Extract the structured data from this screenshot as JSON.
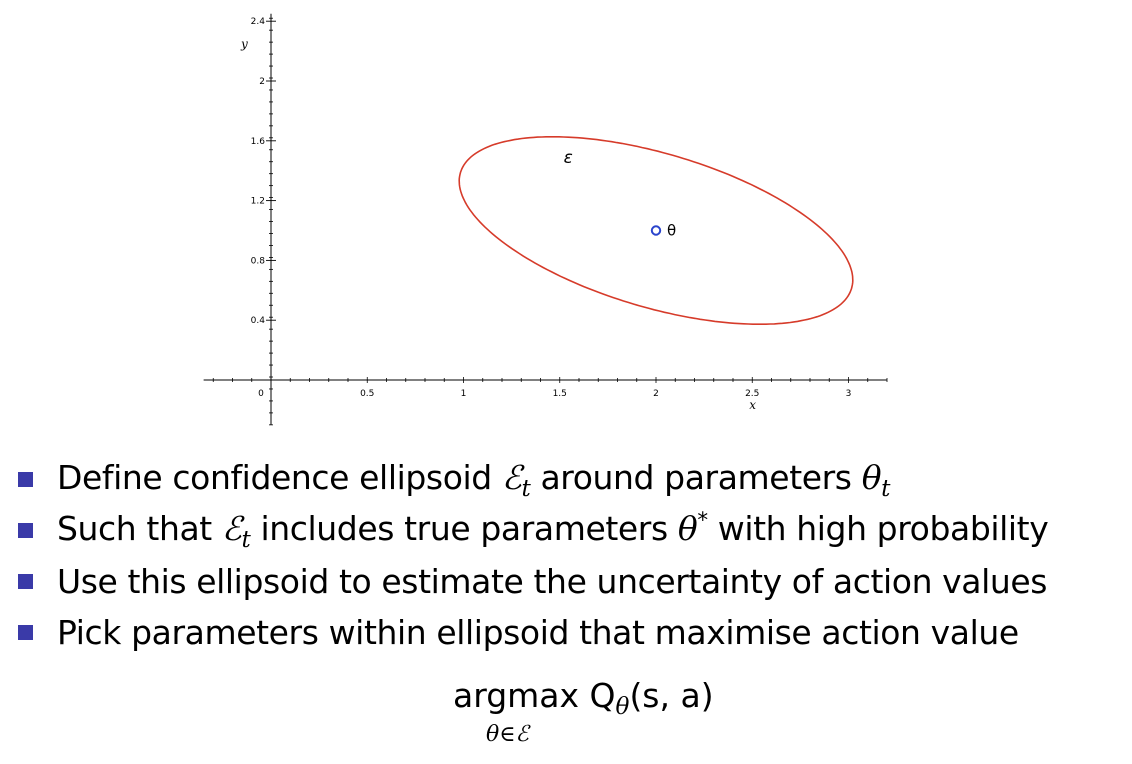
{
  "chart_data": {
    "type": "scatter",
    "xlabel": "x",
    "ylabel": "y",
    "xlim": [
      -0.35,
      3.2
    ],
    "ylim": [
      -0.3,
      2.45
    ],
    "x_ticks": [
      0,
      0.5,
      1,
      1.5,
      2,
      2.5,
      3
    ],
    "x_tick_labels": [
      "0",
      "0.5",
      "1",
      "1.5",
      "2",
      "2.5",
      "3"
    ],
    "y_ticks": [
      0.4,
      0.8,
      1.2,
      1.6,
      2,
      2.4
    ],
    "y_tick_labels": [
      "0.4",
      "0.8",
      "1.2",
      "1.6",
      "2",
      "2.4"
    ],
    "ellipse": {
      "label": "ε",
      "center": [
        2.0,
        1.0
      ],
      "semi_axes": [
        1.09,
        0.5
      ],
      "rotation_deg": -23,
      "color": "#d63b2a"
    },
    "point": {
      "label": "θ",
      "x": 2.0,
      "y": 1.0,
      "color": "#2a44cc"
    }
  },
  "bullets": {
    "b1": {
      "pre": "Define confidence ellipsoid ",
      "set": "ℰ",
      "set_sub": "t",
      "mid": " around parameters ",
      "theta": "θ",
      "theta_sub": "t"
    },
    "b2": {
      "pre": "Such that ",
      "set": "ℰ",
      "set_sub": "t",
      "mid": " includes true parameters ",
      "theta": "θ",
      "theta_sup": "*",
      "post": " with high probability"
    },
    "b3": {
      "text": "Use this ellipsoid to estimate the uncertainty of action values"
    },
    "b4": {
      "text": "Pick parameters within ellipsoid that maximise action value"
    }
  },
  "formula": {
    "main": "argmax Q",
    "q_sub": "θ",
    "args": "(s, a)",
    "under": "θ∈ℰ"
  },
  "colors": {
    "bullet": "#3a3aa8",
    "ellipse": "#d63b2a",
    "point": "#2a44cc"
  }
}
